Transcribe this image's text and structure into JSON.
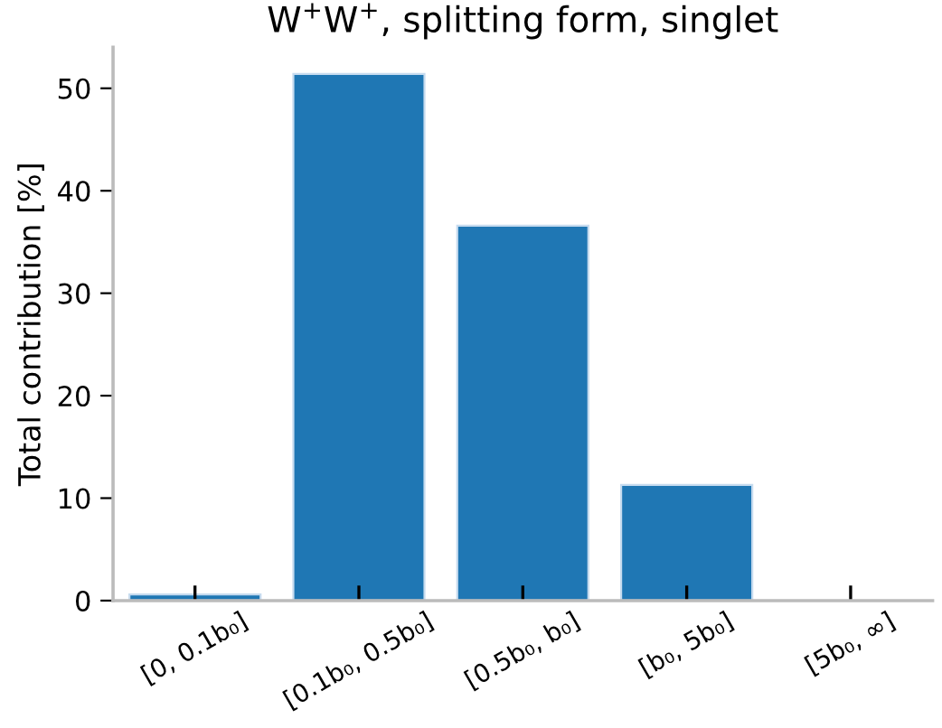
{
  "chart_data": {
    "type": "bar",
    "title": "W$^{+}$W$^{+}$, splitting form, singlet",
    "ylabel": "Total contribution [%]",
    "categories": [
      "[0, 0.1b₀]",
      "[0.1b₀, 0.5b₀]",
      "[0.5b₀, b₀]",
      "[b₀, 5b₀]",
      "[5b₀, ∞]"
    ],
    "values": [
      0.6,
      51.4,
      36.6,
      11.3,
      null
    ],
    "color": "#1f77b4",
    "ylim": [
      0,
      54
    ],
    "yticks": [
      0,
      10,
      20,
      30,
      40,
      50
    ],
    "grid": false
  }
}
